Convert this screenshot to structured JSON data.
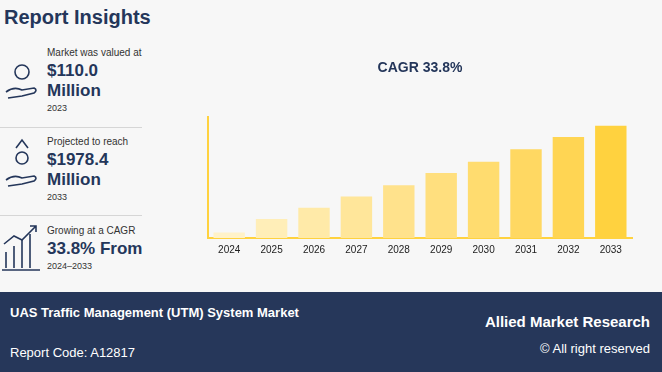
{
  "header": {
    "title": "Report Insights"
  },
  "insights": [
    {
      "label": "Market was valued at",
      "value": "$110.0",
      "unit": "Million",
      "note": "2023"
    },
    {
      "label": "Projected to reach",
      "value": "$1978.4",
      "unit": "Million",
      "note": "2033"
    },
    {
      "label": "Growing at a CAGR",
      "value": "33.8% From",
      "note": "2024–2033"
    }
  ],
  "chart_data": {
    "type": "bar",
    "title": "CAGR 33.8%",
    "categories": [
      "2024",
      "2025",
      "2026",
      "2027",
      "2028",
      "2029",
      "2030",
      "2031",
      "2032",
      "2033"
    ],
    "values": [
      5,
      17,
      27,
      37,
      47,
      58,
      68,
      79,
      90,
      100
    ],
    "colors": [
      "#fff2c9",
      "#ffeeb8",
      "#ffeaa8",
      "#ffe69a",
      "#ffe28c",
      "#ffdf7e",
      "#ffdc6f",
      "#ffd862",
      "#ffd553",
      "#ffd23f"
    ],
    "ylim": [
      0,
      108
    ],
    "grid": false,
    "tick_labels": "x"
  },
  "footer": {
    "title": "UAS Traffic Management (UTM) System Market",
    "report_code": "Report Code: A12817",
    "brand": "Allied Market Research",
    "rights": "© All right reserved"
  }
}
